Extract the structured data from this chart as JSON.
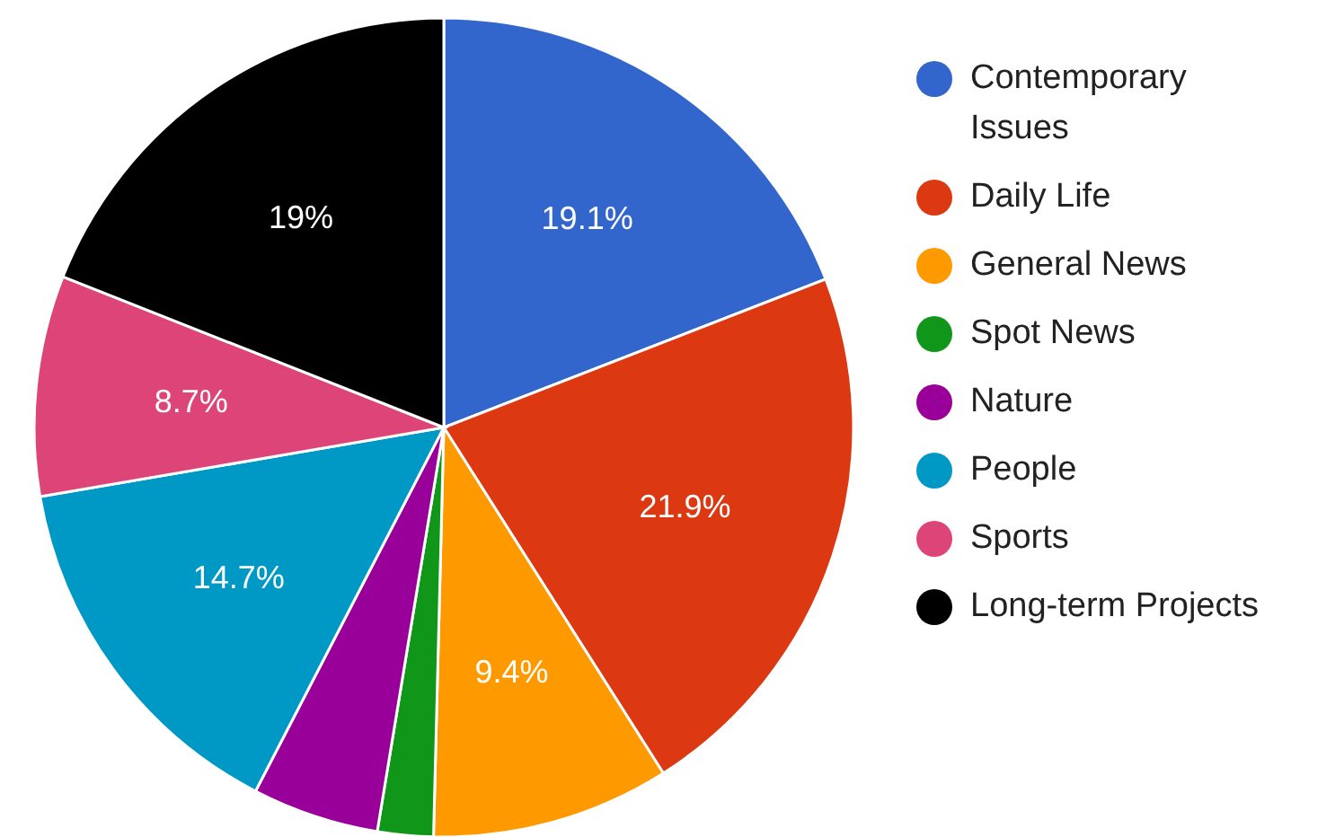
{
  "chart_data": {
    "type": "pie",
    "categories": [
      "Contemporary Issues",
      "Daily Life",
      "General News",
      "Spot News",
      "Nature",
      "People",
      "Sports",
      "Long-term Projects"
    ],
    "values": [
      19.1,
      21.9,
      9.4,
      2.2,
      5.0,
      14.7,
      8.7,
      19
    ],
    "colors": [
      "#3366cc",
      "#dc3912",
      "#ff9900",
      "#109618",
      "#990099",
      "#0099c6",
      "#dd4477",
      "#000000"
    ],
    "value_labels": [
      "19.1%",
      "21.9%",
      "9.4%",
      null,
      null,
      "14.7%",
      "8.7%",
      "19%"
    ],
    "legend": "right"
  }
}
